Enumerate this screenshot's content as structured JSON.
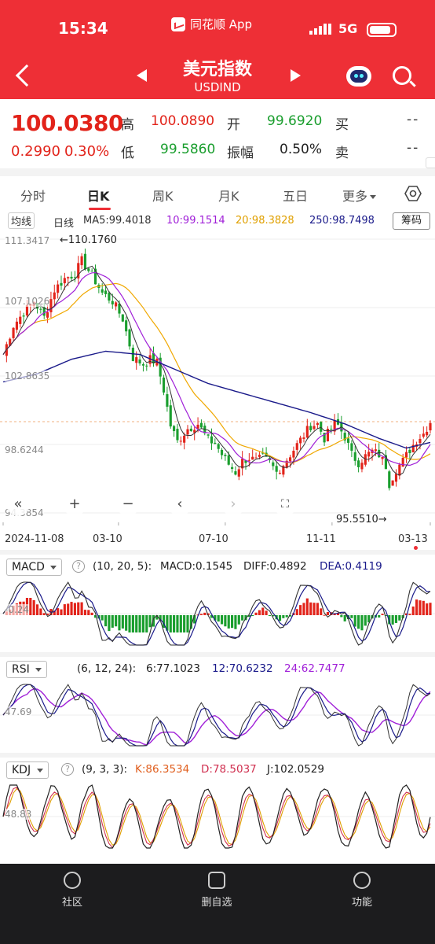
{
  "status": {
    "time": "15:34",
    "app": "同花顺 App",
    "network": "5G"
  },
  "header": {
    "title": "美元指数",
    "subtitle": "USDIND"
  },
  "quote": {
    "price": "100.0380",
    "change": "0.2990",
    "change_pct": "0.30%",
    "high_label": "高",
    "high": "100.0890",
    "low_label": "低",
    "low": "99.5860",
    "open_label": "开",
    "open": "99.6920",
    "amp_label": "振幅",
    "amp": "0.50%",
    "buy_label": "买",
    "buy": "--",
    "sell_label": "卖",
    "sell": "--"
  },
  "tabs": [
    {
      "label": "分时",
      "active": false
    },
    {
      "label": "日K",
      "active": true
    },
    {
      "label": "周K",
      "active": false
    },
    {
      "label": "月K",
      "active": false
    },
    {
      "label": "五日",
      "active": false
    },
    {
      "label": "更多",
      "active": false
    }
  ],
  "ma_legend": {
    "type": "均线",
    "period": "日线",
    "ma5": "MA5:99.4018",
    "ma10": "10:99.1514",
    "ma20": "20:98.3828",
    "ma250": "250:98.7498",
    "chip": "筹码"
  },
  "colors": {
    "up": "#e2231a",
    "down": "#1a9e2e",
    "ma5": "#333333",
    "ma10": "#a020d8",
    "ma20": "#f0a800",
    "ma250": "#1a1a8a",
    "accent": "#ee2f36"
  },
  "main_chart": {
    "y_labels": [
      "111.3417",
      "107.1026",
      "102.8635",
      "98.6244",
      "94.3854"
    ],
    "max_annotation": "←110.1760",
    "min_annotation": "95.5510→",
    "x_labels": [
      "2024-11-08",
      "03-10",
      "07-10",
      "11-11",
      "03-13"
    ]
  },
  "macd": {
    "name": "MACD",
    "params": "(10, 20, 5):",
    "macd": "MACD:0.1545",
    "diff": "DIFF:0.4892",
    "dea": "DEA:0.4119",
    "axis": "-0.24"
  },
  "rsi": {
    "name": "RSI",
    "params": "(6, 12, 24):",
    "r6": "6:77.1023",
    "r12": "12:70.6232",
    "r24": "24:62.7477",
    "axis": "47.69"
  },
  "kdj": {
    "name": "KDJ",
    "params": "(9, 3, 3):",
    "k": "K:86.3534",
    "d": "D:78.5037",
    "j": "J:102.0529",
    "axis": "48.83"
  },
  "bottom_nav": [
    {
      "label": "社区",
      "icon": "community-icon"
    },
    {
      "label": "删自选",
      "icon": "remove-watchlist-icon"
    },
    {
      "label": "功能",
      "icon": "menu-icon"
    }
  ],
  "chart_data": {
    "type": "candlestick",
    "title": "美元指数 USDIND 日K",
    "x_ticks": [
      "2024-11-08",
      "03-10",
      "07-10",
      "11-11",
      "03-13"
    ],
    "y_ticks": [
      111.3417,
      107.1026,
      102.8635,
      98.6244,
      94.3854
    ],
    "ylim": [
      94.3854,
      111.3417
    ],
    "close_path": [
      [
        0,
        104.2
      ],
      [
        3,
        106.0
      ],
      [
        6,
        106.8
      ],
      [
        9,
        107.5
      ],
      [
        12,
        106.5
      ],
      [
        15,
        108.2
      ],
      [
        18,
        108.9
      ],
      [
        21,
        109.2
      ],
      [
        23,
        110.0
      ],
      [
        26,
        109.1
      ],
      [
        29,
        108.0
      ],
      [
        32,
        107.5
      ],
      [
        35,
        106.4
      ],
      [
        38,
        104.0
      ],
      [
        41,
        103.6
      ],
      [
        43,
        103.9
      ],
      [
        45,
        103.7
      ],
      [
        47,
        102.0
      ],
      [
        49,
        99.8
      ],
      [
        51,
        98.8
      ],
      [
        54,
        99.6
      ],
      [
        57,
        99.9
      ],
      [
        60,
        98.9
      ],
      [
        62,
        98.7
      ],
      [
        64,
        98.0
      ],
      [
        66,
        97.4
      ],
      [
        68,
        96.9
      ],
      [
        70,
        97.6
      ],
      [
        72,
        97.8
      ],
      [
        74,
        97.6
      ],
      [
        76,
        97.8
      ],
      [
        78,
        97.5
      ],
      [
        80,
        96.9
      ],
      [
        82,
        97.4
      ],
      [
        84,
        98.0
      ],
      [
        86,
        98.6
      ],
      [
        88,
        99.2
      ],
      [
        90,
        99.8
      ],
      [
        92,
        99.9
      ],
      [
        94,
        99.0
      ],
      [
        96,
        99.6
      ],
      [
        97,
        99.9
      ],
      [
        98,
        99.8
      ],
      [
        100,
        99.1
      ],
      [
        102,
        98.0
      ],
      [
        104,
        97.5
      ],
      [
        106,
        97.9
      ],
      [
        108,
        98.2
      ],
      [
        110,
        98.0
      ],
      [
        112,
        97.3
      ],
      [
        113,
        96.2
      ],
      [
        115,
        97.1
      ],
      [
        117,
        97.6
      ],
      [
        119,
        98.3
      ],
      [
        121,
        98.9
      ],
      [
        123,
        99.3
      ],
      [
        125,
        100.04
      ]
    ],
    "ma250_path": [
      [
        0,
        102.5
      ],
      [
        10,
        103.0
      ],
      [
        20,
        103.9
      ],
      [
        30,
        104.4
      ],
      [
        40,
        104.2
      ],
      [
        50,
        103.3
      ],
      [
        60,
        102.4
      ],
      [
        70,
        101.8
      ],
      [
        80,
        101.2
      ],
      [
        90,
        100.6
      ],
      [
        100,
        99.9
      ],
      [
        110,
        99.0
      ],
      [
        118,
        98.4
      ],
      [
        125,
        98.75
      ]
    ],
    "series": [
      {
        "name": "MA5",
        "value": 99.4018
      },
      {
        "name": "MA10",
        "value": 99.1514
      },
      {
        "name": "MA20",
        "value": 98.3828
      },
      {
        "name": "MA250",
        "value": 98.7498
      }
    ],
    "annotations": [
      {
        "text": "←110.1760",
        "value": 110.176
      },
      {
        "text": "95.5510→",
        "value": 95.551
      }
    ]
  }
}
